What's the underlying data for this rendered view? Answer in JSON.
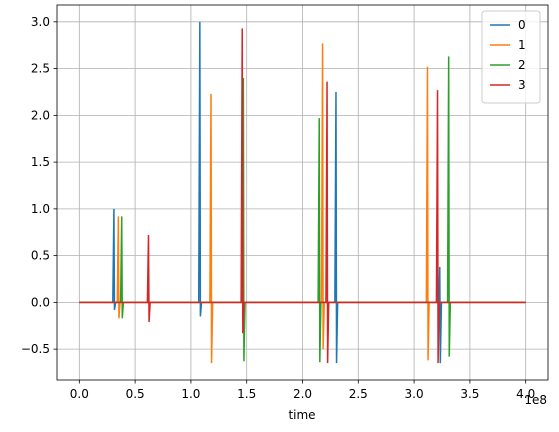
{
  "chart_data": {
    "type": "line",
    "x_label": "time",
    "x_offset_label": "1e8",
    "series": [
      {
        "name": "0",
        "color": "#1f77b4",
        "x": [
          0,
          30000000,
          31000000,
          31500000,
          32500000,
          107000000,
          108000000,
          108500000,
          109500000,
          229000000,
          230000000,
          230500000,
          231500000,
          322000000,
          323000000,
          323500000,
          324500000,
          400000000
        ],
        "values": [
          0,
          0,
          1.0,
          -0.08,
          0,
          0,
          3.0,
          -0.15,
          0,
          0,
          2.25,
          -0.65,
          0,
          0,
          0.38,
          -0.65,
          0,
          0
        ]
      },
      {
        "name": "1",
        "color": "#ff7f0e",
        "x": [
          0,
          34000000,
          35000000,
          35500000,
          36500000,
          117000000,
          118000000,
          118500000,
          119500000,
          217000000,
          218000000,
          218500000,
          219500000,
          311000000,
          312000000,
          312500000,
          313500000,
          400000000
        ],
        "values": [
          0,
          0,
          0.92,
          -0.17,
          0,
          0,
          2.23,
          -0.65,
          0,
          0,
          2.77,
          -0.5,
          0,
          0,
          2.52,
          -0.62,
          0,
          0
        ]
      },
      {
        "name": "2",
        "color": "#2ca02c",
        "x": [
          0,
          37000000,
          38000000,
          38500000,
          39500000,
          146000000,
          147000000,
          147500000,
          148500000,
          214000000,
          215000000,
          215500000,
          216500000,
          330000000,
          331000000,
          331500000,
          332500000,
          400000000
        ],
        "values": [
          0,
          0,
          0.92,
          -0.17,
          0,
          0,
          2.4,
          -0.63,
          0,
          0,
          1.97,
          -0.64,
          0,
          0,
          2.63,
          -0.58,
          0,
          0
        ]
      },
      {
        "name": "3",
        "color": "#d62728",
        "x": [
          0,
          61000000,
          62000000,
          62500000,
          63500000,
          145000000,
          146000000,
          146500000,
          147500000,
          221000000,
          222000000,
          222500000,
          223500000,
          320000000,
          321000000,
          321500000,
          322500000,
          400000000
        ],
        "values": [
          0,
          0,
          0.72,
          -0.21,
          0,
          0,
          2.93,
          -0.33,
          0,
          0,
          2.36,
          -0.65,
          0,
          0,
          2.27,
          -0.65,
          0,
          0
        ]
      }
    ],
    "xlim": [
      -20000000,
      420000000
    ],
    "xticks": [
      {
        "value": 0,
        "label": "0.0"
      },
      {
        "value": 50000000,
        "label": "0.5"
      },
      {
        "value": 100000000,
        "label": "1.0"
      },
      {
        "value": 150000000,
        "label": "1.5"
      },
      {
        "value": 200000000,
        "label": "2.0"
      },
      {
        "value": 250000000,
        "label": "2.5"
      },
      {
        "value": 300000000,
        "label": "3.0"
      },
      {
        "value": 350000000,
        "label": "3.5"
      },
      {
        "value": 400000000,
        "label": "4.0"
      }
    ],
    "ylim": [
      -0.83,
      3.18
    ],
    "yticks": [
      {
        "value": -0.5,
        "label": "−0.5"
      },
      {
        "value": 0,
        "label": "0.0"
      },
      {
        "value": 0.5,
        "label": "0.5"
      },
      {
        "value": 1,
        "label": "1.0"
      },
      {
        "value": 1.5,
        "label": "1.5"
      },
      {
        "value": 2,
        "label": "2.0"
      },
      {
        "value": 2.5,
        "label": "2.5"
      },
      {
        "value": 3,
        "label": "3.0"
      }
    ],
    "grid": true,
    "legend": "upper right"
  }
}
